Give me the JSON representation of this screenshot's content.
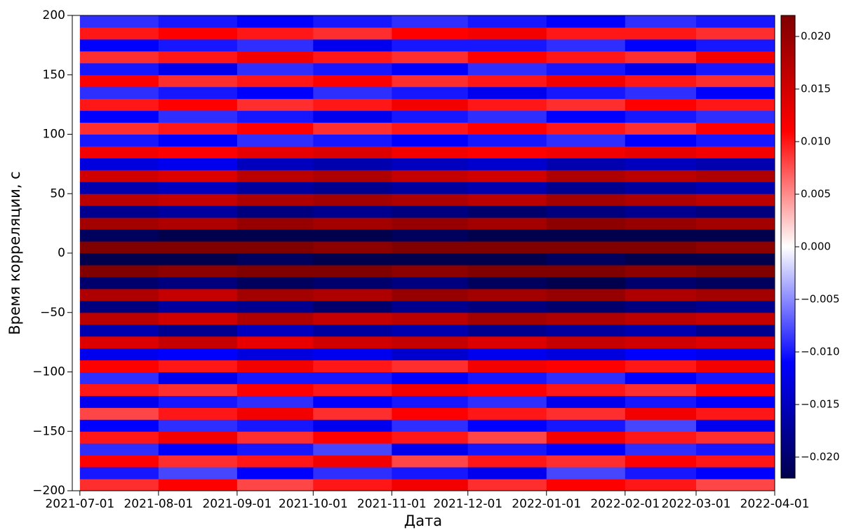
{
  "chart_data": {
    "type": "heatmap",
    "xlabel": "Дата",
    "ylabel": "Время корреляции, с",
    "colormap": "seismic",
    "x_bins": [
      "2021-07-01",
      "2021-08-01",
      "2021-09-01",
      "2021-10-01",
      "2021-11-01",
      "2021-12-01",
      "2022-01-01",
      "2022-02-01",
      "2022-03-01",
      "2022-04-01"
    ],
    "y_bins": [
      -200,
      -190,
      -180,
      -170,
      -160,
      -150,
      -140,
      -130,
      -120,
      -110,
      -100,
      -90,
      -80,
      -70,
      -60,
      -50,
      -40,
      -30,
      -20,
      -10,
      0,
      10,
      20,
      30,
      40,
      50,
      60,
      70,
      80,
      90,
      100,
      110,
      120,
      130,
      140,
      150,
      160,
      170,
      180,
      190,
      200
    ],
    "values": [
      [
        0.009,
        0.011,
        0.008,
        0.01,
        0.012,
        0.009,
        0.011,
        0.01,
        0.008
      ],
      [
        -0.01,
        -0.008,
        -0.011,
        -0.009,
        -0.01,
        -0.012,
        -0.008,
        -0.01,
        -0.011
      ],
      [
        0.011,
        0.009,
        0.01,
        0.012,
        0.008,
        0.01,
        0.009,
        0.011,
        0.01
      ],
      [
        -0.009,
        -0.011,
        -0.01,
        -0.008,
        -0.012,
        -0.01,
        -0.011,
        -0.009,
        -0.01
      ],
      [
        0.01,
        0.012,
        0.009,
        0.011,
        0.01,
        0.008,
        0.012,
        0.01,
        0.009
      ],
      [
        -0.011,
        -0.009,
        -0.01,
        -0.012,
        -0.009,
        -0.011,
        -0.01,
        -0.008,
        -0.012
      ],
      [
        0.008,
        0.01,
        0.012,
        0.009,
        0.011,
        0.01,
        0.009,
        0.012,
        0.01
      ],
      [
        -0.012,
        -0.01,
        -0.009,
        -0.011,
        -0.01,
        -0.009,
        -0.012,
        -0.01,
        -0.011
      ],
      [
        0.01,
        0.009,
        0.011,
        0.01,
        0.012,
        0.011,
        0.01,
        0.009,
        0.011
      ],
      [
        -0.009,
        -0.012,
        -0.01,
        -0.01,
        -0.011,
        -0.01,
        -0.009,
        -0.011,
        -0.01
      ],
      [
        0.011,
        0.01,
        0.012,
        0.01,
        0.009,
        0.012,
        0.011,
        0.01,
        0.012
      ],
      [
        -0.012,
        -0.011,
        -0.013,
        -0.012,
        -0.014,
        -0.012,
        -0.013,
        -0.011,
        -0.012
      ],
      [
        0.014,
        0.016,
        0.013,
        0.015,
        0.016,
        0.014,
        0.016,
        0.015,
        0.014
      ],
      [
        -0.016,
        -0.018,
        -0.015,
        -0.017,
        -0.016,
        -0.018,
        -0.017,
        -0.016,
        -0.018
      ],
      [
        0.017,
        0.015,
        0.018,
        0.016,
        0.017,
        0.019,
        0.018,
        0.017,
        0.016
      ],
      [
        -0.019,
        -0.017,
        -0.018,
        -0.02,
        -0.018,
        -0.019,
        -0.02,
        -0.019,
        -0.018
      ],
      [
        0.018,
        0.016,
        0.019,
        0.018,
        0.02,
        0.019,
        0.02,
        0.018,
        0.019
      ],
      [
        -0.02,
        -0.019,
        -0.021,
        -0.02,
        -0.019,
        -0.021,
        -0.022,
        -0.02,
        -0.021
      ],
      [
        0.022,
        0.021,
        0.022,
        0.022,
        0.021,
        0.022,
        0.022,
        0.021,
        0.022
      ],
      [
        -0.022,
        -0.022,
        -0.021,
        -0.022,
        -0.022,
        -0.022,
        -0.021,
        -0.022,
        -0.022
      ],
      [
        0.022,
        0.022,
        0.022,
        0.021,
        0.022,
        0.022,
        0.022,
        0.022,
        0.021
      ],
      [
        -0.021,
        -0.022,
        -0.022,
        -0.022,
        -0.021,
        -0.022,
        -0.022,
        -0.022,
        -0.022
      ],
      [
        0.019,
        0.018,
        0.02,
        0.019,
        0.02,
        0.019,
        0.021,
        0.02,
        0.019
      ],
      [
        -0.018,
        -0.017,
        -0.019,
        -0.018,
        -0.019,
        -0.02,
        -0.019,
        -0.018,
        -0.019
      ],
      [
        0.017,
        0.016,
        0.018,
        0.019,
        0.018,
        0.017,
        0.019,
        0.018,
        0.017
      ],
      [
        -0.016,
        -0.015,
        -0.017,
        -0.018,
        -0.017,
        -0.016,
        -0.018,
        -0.017,
        -0.016
      ],
      [
        0.015,
        0.014,
        0.017,
        0.018,
        0.016,
        0.015,
        0.018,
        0.017,
        0.018
      ],
      [
        -0.013,
        -0.012,
        -0.015,
        -0.016,
        -0.015,
        -0.014,
        -0.016,
        -0.015,
        -0.016
      ],
      [
        0.012,
        0.011,
        0.013,
        0.014,
        0.012,
        0.011,
        0.012,
        0.013,
        0.012
      ],
      [
        -0.01,
        -0.011,
        -0.009,
        -0.01,
        -0.011,
        -0.01,
        -0.009,
        -0.011,
        -0.01
      ],
      [
        0.009,
        0.01,
        0.011,
        0.009,
        0.01,
        0.011,
        0.01,
        0.009,
        0.011
      ],
      [
        -0.011,
        -0.009,
        -0.01,
        -0.012,
        -0.01,
        -0.009,
        -0.011,
        -0.01,
        -0.009
      ],
      [
        0.01,
        0.011,
        0.009,
        0.01,
        0.012,
        0.01,
        0.009,
        0.011,
        0.01
      ],
      [
        -0.009,
        -0.01,
        -0.011,
        -0.009,
        -0.01,
        -0.012,
        -0.01,
        -0.009,
        -0.011
      ],
      [
        0.011,
        0.009,
        0.01,
        0.011,
        0.009,
        0.01,
        0.012,
        0.01,
        0.009
      ],
      [
        -0.01,
        -0.012,
        -0.009,
        -0.01,
        -0.011,
        -0.009,
        -0.01,
        -0.012,
        -0.01
      ],
      [
        0.009,
        0.01,
        0.012,
        0.01,
        0.009,
        0.011,
        0.01,
        0.009,
        0.012
      ],
      [
        -0.011,
        -0.01,
        -0.009,
        -0.012,
        -0.01,
        -0.01,
        -0.009,
        -0.011,
        -0.01
      ],
      [
        0.01,
        0.011,
        0.01,
        0.009,
        0.011,
        0.012,
        0.01,
        0.01,
        0.009
      ],
      [
        -0.009,
        -0.01,
        -0.011,
        -0.01,
        -0.009,
        -0.01,
        -0.011,
        -0.009,
        -0.01
      ]
    ],
    "xlim": [
      "2021-06-28",
      "2022-04-01"
    ],
    "ylim": [
      -200,
      200
    ],
    "xticks": [
      "2021-07-01",
      "2021-08-01",
      "2021-09-01",
      "2021-10-01",
      "2021-11-01",
      "2021-12-01",
      "2022-01-01",
      "2022-02-01",
      "2022-03-01",
      "2022-04-01"
    ],
    "yticks": [
      {
        "value": -200,
        "label": "−200"
      },
      {
        "value": -150,
        "label": "−150"
      },
      {
        "value": -100,
        "label": "−100"
      },
      {
        "value": -50,
        "label": "−50"
      },
      0,
      50,
      100,
      150,
      200
    ],
    "clim": [
      -0.022,
      0.022
    ],
    "cticks": [
      {
        "value": -0.02,
        "label": "−0.020"
      },
      {
        "value": -0.015,
        "label": "−0.015"
      },
      {
        "value": -0.01,
        "label": "−0.010"
      },
      {
        "value": -0.005,
        "label": "−0.005"
      },
      {
        "value": 0,
        "label": "0.000"
      },
      0.005,
      {
        "value": 0.01,
        "label": "0.010"
      },
      0.015,
      {
        "value": 0.02,
        "label": "0.020"
      }
    ]
  }
}
